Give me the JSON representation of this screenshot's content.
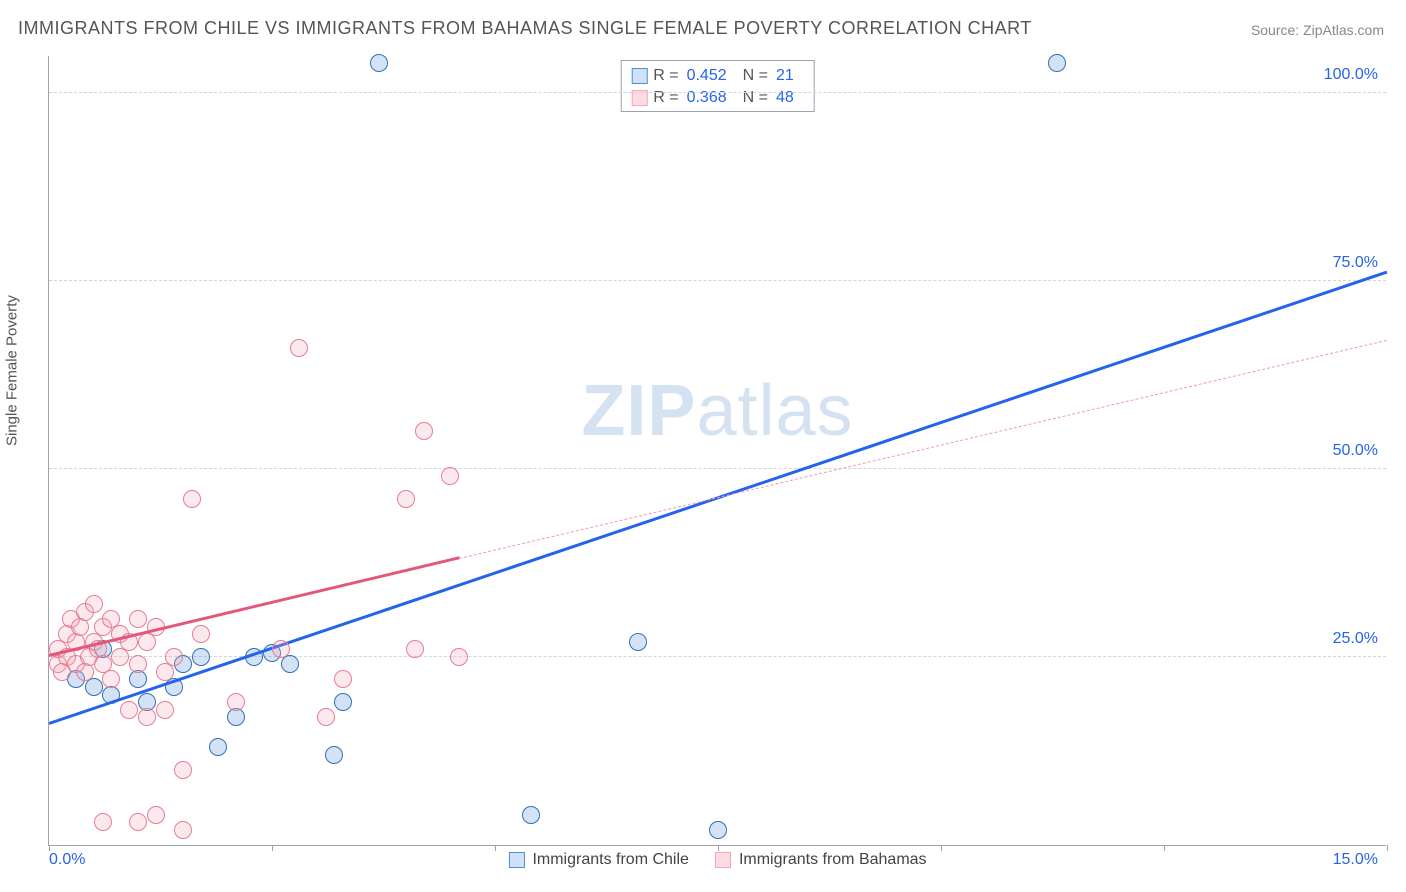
{
  "title": "IMMIGRANTS FROM CHILE VS IMMIGRANTS FROM BAHAMAS SINGLE FEMALE POVERTY CORRELATION CHART",
  "source": "Source: ZipAtlas.com",
  "ylabel": "Single Female Poverty",
  "watermark_bold": "ZIP",
  "watermark_rest": "atlas",
  "chart": {
    "type": "scatter",
    "background_color": "#ffffff",
    "grid_color": "#d1d5db",
    "axis_color": "#9ca3af",
    "tick_color": "#2563eb",
    "label_color": "#555555",
    "label_fontsize": 15,
    "tick_fontsize": 16,
    "title_fontsize": 18,
    "xlim": [
      0,
      15
    ],
    "ylim": [
      0,
      105
    ],
    "yticks": [
      25,
      50,
      75,
      100
    ],
    "ytick_labels": [
      "25.0%",
      "50.0%",
      "75.0%",
      "100.0%"
    ],
    "xtick_positions": [
      0,
      2.5,
      5,
      7.5,
      10,
      12.5,
      15
    ],
    "xtick_start_label": "0.0%",
    "xtick_end_label": "15.0%",
    "marker_radius": 9,
    "marker_stroke_width": 1.2,
    "marker_fill_opacity": 0.25
  },
  "series": [
    {
      "key": "chile",
      "name": "Immigrants from Chile",
      "color": "#4f8fd6",
      "stroke": "#2f6fb8",
      "R": "0.452",
      "N": "21",
      "trend": {
        "x1": 0,
        "y1": 16,
        "x2": 15,
        "y2": 76,
        "width": 3,
        "dashed": false,
        "color": "#2563eb"
      },
      "points": [
        [
          3.7,
          104
        ],
        [
          11.3,
          104
        ],
        [
          6.6,
          27
        ],
        [
          7.5,
          2
        ],
        [
          0.3,
          22
        ],
        [
          0.5,
          21
        ],
        [
          0.6,
          26
        ],
        [
          0.7,
          20
        ],
        [
          1.0,
          22
        ],
        [
          1.1,
          19
        ],
        [
          1.4,
          21
        ],
        [
          1.5,
          24
        ],
        [
          1.7,
          25
        ],
        [
          1.9,
          13
        ],
        [
          2.3,
          25
        ],
        [
          2.5,
          25.5
        ],
        [
          2.7,
          24
        ],
        [
          3.2,
          12
        ],
        [
          3.3,
          19
        ],
        [
          2.1,
          17
        ],
        [
          5.4,
          4
        ]
      ]
    },
    {
      "key": "bahamas",
      "name": "Immigrants from Bahamas",
      "color": "#f5a6b8",
      "stroke": "#e77c96",
      "R": "0.368",
      "N": "48",
      "trend_solid": {
        "x1": 0,
        "y1": 25,
        "x2": 4.6,
        "y2": 38,
        "width": 3,
        "dashed": false,
        "color": "#e5577a"
      },
      "trend_dashed": {
        "x1": 4.6,
        "y1": 38,
        "x2": 15,
        "y2": 67,
        "width": 1.2,
        "dashed": true,
        "color": "#f09bb0"
      },
      "points": [
        [
          0.1,
          24
        ],
        [
          0.1,
          26
        ],
        [
          0.15,
          23
        ],
        [
          0.2,
          28
        ],
        [
          0.2,
          25
        ],
        [
          0.25,
          30
        ],
        [
          0.3,
          27
        ],
        [
          0.3,
          24
        ],
        [
          0.35,
          29
        ],
        [
          0.4,
          31
        ],
        [
          0.4,
          23
        ],
        [
          0.45,
          25
        ],
        [
          0.5,
          27
        ],
        [
          0.5,
          32
        ],
        [
          0.55,
          26
        ],
        [
          0.6,
          29
        ],
        [
          0.6,
          24
        ],
        [
          0.7,
          30
        ],
        [
          0.7,
          22
        ],
        [
          0.8,
          28
        ],
        [
          0.8,
          25
        ],
        [
          0.9,
          27
        ],
        [
          0.9,
          18
        ],
        [
          1.0,
          30
        ],
        [
          1.0,
          24
        ],
        [
          1.1,
          27
        ],
        [
          1.1,
          17
        ],
        [
          1.2,
          29
        ],
        [
          1.2,
          4
        ],
        [
          1.3,
          23
        ],
        [
          1.3,
          18
        ],
        [
          1.4,
          25
        ],
        [
          1.5,
          10
        ],
        [
          1.5,
          2
        ],
        [
          1.6,
          46
        ],
        [
          1.7,
          28
        ],
        [
          2.1,
          19
        ],
        [
          2.6,
          26
        ],
        [
          2.8,
          66
        ],
        [
          3.1,
          17
        ],
        [
          3.3,
          22
        ],
        [
          4.0,
          46
        ],
        [
          4.1,
          26
        ],
        [
          4.2,
          55
        ],
        [
          4.5,
          49
        ],
        [
          4.6,
          25
        ],
        [
          1.0,
          3
        ],
        [
          0.6,
          3
        ]
      ]
    }
  ],
  "legend_top": {
    "rows": [
      {
        "swatch_fill": "#cfe2f7",
        "swatch_stroke": "#4f8fd6",
        "r_label": "R =",
        "r_val": "0.452",
        "n_label": "N =",
        "n_val": "21"
      },
      {
        "swatch_fill": "#fcdbe3",
        "swatch_stroke": "#f5a6b8",
        "r_label": "R =",
        "r_val": "0.368",
        "n_label": "N =",
        "n_val": "48"
      }
    ]
  },
  "legend_bottom": [
    {
      "swatch_fill": "#cfe2f7",
      "swatch_stroke": "#4f8fd6",
      "label": "Immigrants from Chile"
    },
    {
      "swatch_fill": "#fcdbe3",
      "swatch_stroke": "#f5a6b8",
      "label": "Immigrants from Bahamas"
    }
  ]
}
